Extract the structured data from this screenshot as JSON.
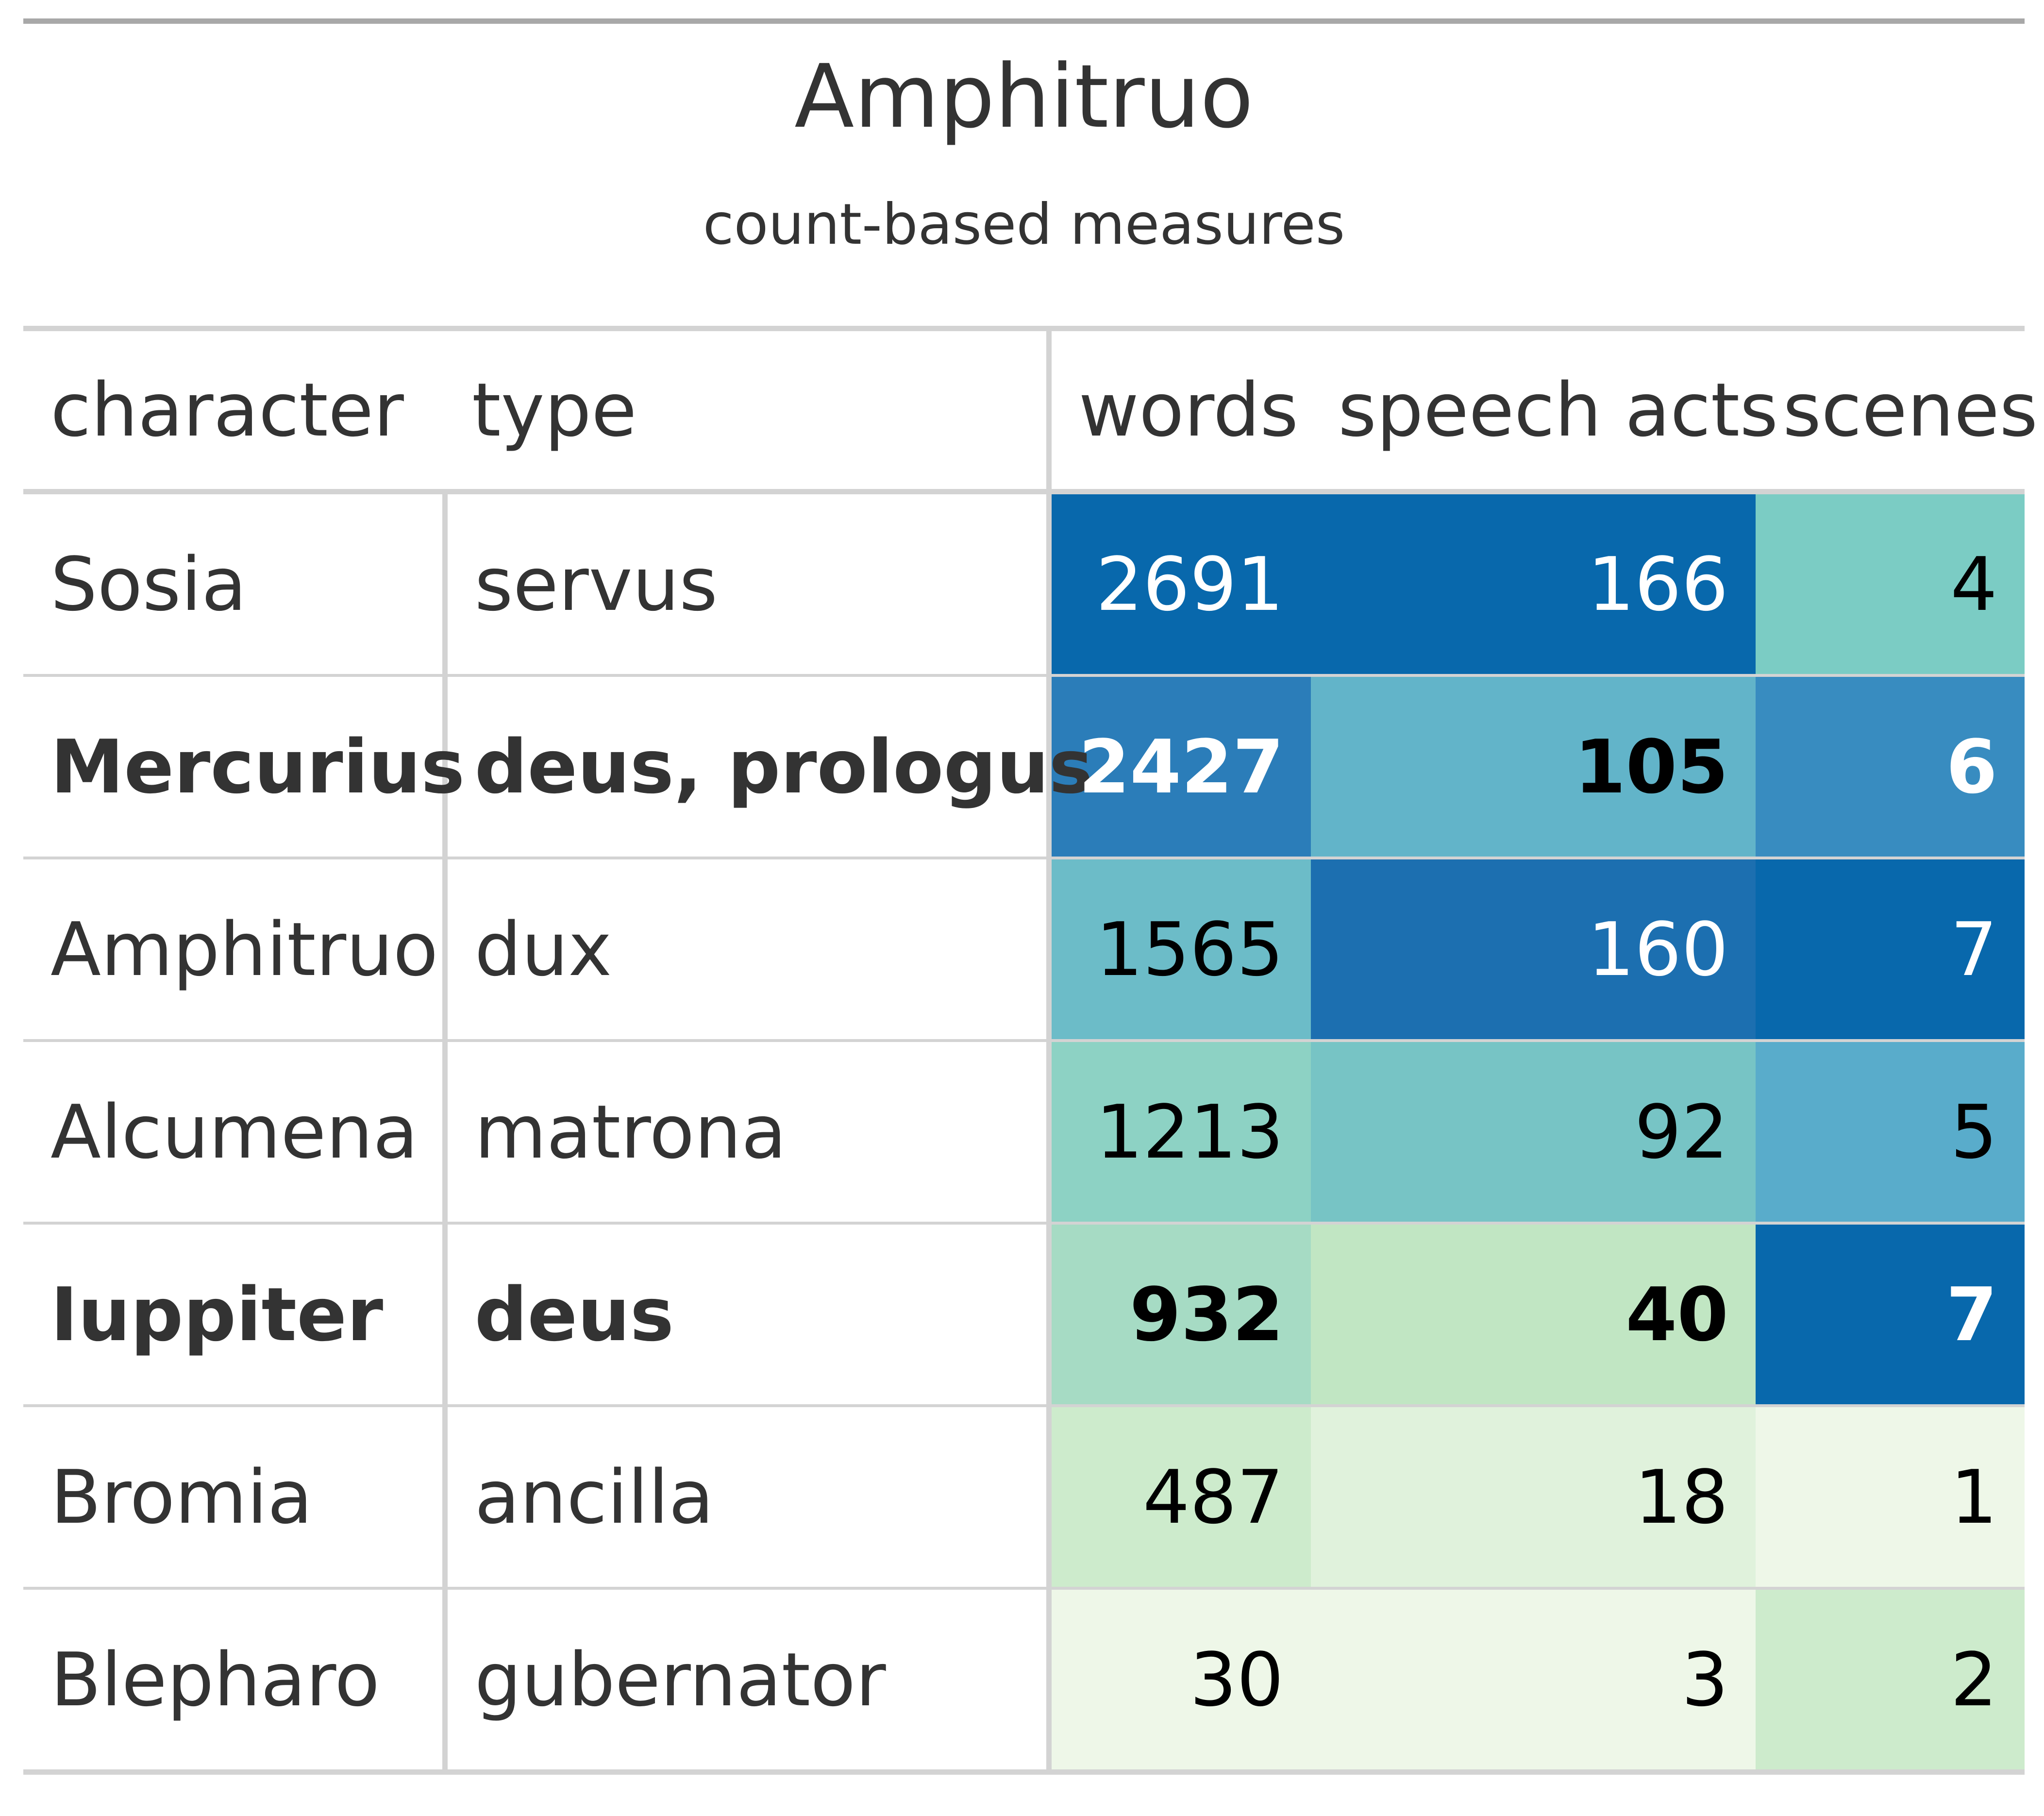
{
  "chart_data": {
    "type": "table",
    "title": "Amphitruo",
    "subtitle": "count-based measures",
    "columns": [
      "character",
      "type",
      "words",
      "speech acts",
      "scenes"
    ],
    "rows": [
      {
        "character": "Sosia",
        "type": "servus",
        "words": 2691,
        "speech_acts": 166,
        "scenes": 4,
        "bold": false
      },
      {
        "character": "Mercurius",
        "type": "deus, prologus",
        "words": 2427,
        "speech_acts": 105,
        "scenes": 6,
        "bold": true
      },
      {
        "character": "Amphitruo",
        "type": "dux",
        "words": 1565,
        "speech_acts": 160,
        "scenes": 7,
        "bold": false
      },
      {
        "character": "Alcumena",
        "type": "matrona",
        "words": 1213,
        "speech_acts": 92,
        "scenes": 5,
        "bold": false
      },
      {
        "character": "Iuppiter",
        "type": "deus",
        "words": 932,
        "speech_acts": 40,
        "scenes": 7,
        "bold": true
      },
      {
        "character": "Bromia",
        "type": "ancilla",
        "words": 487,
        "speech_acts": 18,
        "scenes": 1,
        "bold": false
      },
      {
        "character": "Blepharo",
        "type": "gubernator",
        "words": 30,
        "speech_acts": 3,
        "scenes": 2,
        "bold": false
      }
    ],
    "cell_colors": [
      {
        "words": "#0868ac",
        "speech_acts": "#0868ac",
        "scenes": "#7bccc4"
      },
      {
        "words": "#2b7db9",
        "speech_acts": "#62b4c9",
        "scenes": "#388cc0"
      },
      {
        "words": "#6cbcc8",
        "speech_acts": "#1c6fb0",
        "scenes": "#0868ac"
      },
      {
        "words": "#8dd2c4",
        "speech_acts": "#77c4c5",
        "scenes": "#59accb"
      },
      {
        "words": "#a6dbc4",
        "speech_acts": "#c1e6c3",
        "scenes": "#0868ac"
      },
      {
        "words": "#cdebcc",
        "speech_acts": "#e0f2dc",
        "scenes": "#eef7e8"
      },
      {
        "words": "#eef7e8",
        "speech_acts": "#eef7e8",
        "scenes": "#cdebcc"
      }
    ],
    "text_colors": [
      {
        "words": "#ffffff",
        "speech_acts": "#ffffff",
        "scenes": "#000000"
      },
      {
        "words": "#ffffff",
        "speech_acts": "#000000",
        "scenes": "#ffffff"
      },
      {
        "words": "#000000",
        "speech_acts": "#ffffff",
        "scenes": "#ffffff"
      },
      {
        "words": "#000000",
        "speech_acts": "#000000",
        "scenes": "#000000"
      },
      {
        "words": "#000000",
        "speech_acts": "#000000",
        "scenes": "#ffffff"
      },
      {
        "words": "#000000",
        "speech_acts": "#000000",
        "scenes": "#000000"
      },
      {
        "words": "#000000",
        "speech_acts": "#000000",
        "scenes": "#000000"
      }
    ]
  }
}
